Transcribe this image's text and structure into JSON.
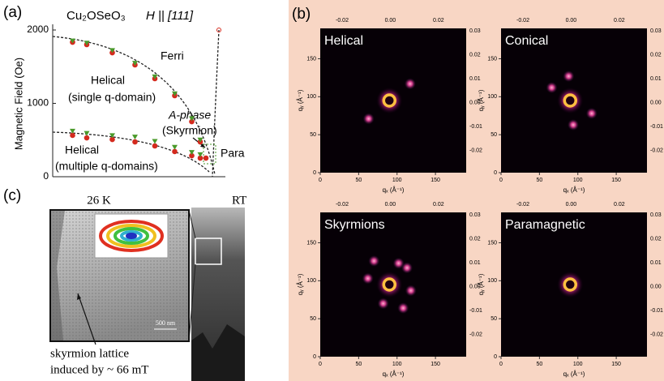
{
  "panel_labels": [
    "(a)",
    "(b)",
    "(c)"
  ],
  "chart_data": {
    "type": "scatter",
    "title": "Cu₂OSeO₃",
    "subtitle": "H || [111]",
    "ylabel": "Magnetic Field (Oe)",
    "ylim": [
      0,
      2000
    ],
    "yticks": [
      0,
      1000,
      2000
    ],
    "xlim": [
      0,
      60
    ],
    "annotations": [
      "Ferri",
      "Helical",
      "(single q-domain)",
      "A-phase",
      "(Skyrmion)",
      "Para",
      "Helical",
      "(multiple q-domains)"
    ],
    "series": [
      {
        "color": "#d42a1e",
        "marker": "circle",
        "x": [
          7,
          12,
          21,
          29,
          36,
          43,
          49,
          52,
          54,
          7,
          12,
          21,
          29,
          36,
          43,
          49,
          52
        ],
        "values": [
          1834,
          1801,
          1690,
          1525,
          1337,
          1105,
          751,
          475,
          254,
          564,
          530,
          508,
          475,
          420,
          343,
          287,
          254
        ]
      },
      {
        "color": "#4a9a2a",
        "marker": "triangle",
        "x": [
          7,
          12,
          21,
          29,
          36,
          43,
          49,
          52,
          7,
          12,
          21,
          29,
          36,
          43,
          49,
          52
        ],
        "values": [
          1850,
          1820,
          1720,
          1545,
          1360,
          1130,
          790,
          500,
          620,
          590,
          560,
          540,
          480,
          400,
          330,
          300
        ]
      }
    ]
  },
  "sans": {
    "xlabel": "qₓ (Å⁻¹)",
    "ylabel": "qᵧ (Å⁻¹)",
    "qlim": [
      0,
      190
    ],
    "xticks": [
      0,
      50,
      100,
      150
    ],
    "yticks": [
      0,
      50,
      100,
      150
    ],
    "top_ticks": [
      "-0.02",
      "0.00",
      "0.02"
    ],
    "right_ticks": [
      "0.03",
      "0.02",
      "0.01",
      "0.00",
      "-0.01",
      "-0.02"
    ],
    "images": [
      "Helical",
      "Conical",
      "Skyrmions",
      "Paramagnetic"
    ]
  },
  "tem": {
    "left_title": "26 K",
    "right_title": "RT",
    "scale": "500 nm",
    "caption": [
      "skyrmion lattice",
      "induced by ~ 66 mT"
    ]
  }
}
